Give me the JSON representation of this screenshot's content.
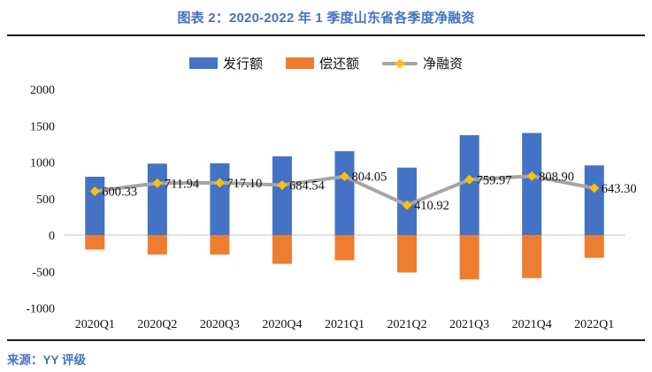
{
  "header": {
    "title": "图表 2：2020-2022 年 1 季度山东省各季度净融资"
  },
  "footer": {
    "source": "来源：YY 评级"
  },
  "theme": {
    "title_color": "#4472C4",
    "issuance_color": "#4472C4",
    "repayment_color": "#ED7D31",
    "net_line_color": "#A5A5A5",
    "net_marker_color": "#FFC000",
    "zero_line_color": "#D9D9D9"
  },
  "chart_data": {
    "type": "bar",
    "categories": [
      "2020Q1",
      "2020Q2",
      "2020Q3",
      "2020Q4",
      "2021Q1",
      "2021Q2",
      "2021Q3",
      "2021Q4",
      "2022Q1"
    ],
    "series": [
      {
        "name": "发行额",
        "type": "bar",
        "color": "#4472C4",
        "values": [
          800,
          980,
          985,
          1080,
          1150,
          925,
          1370,
          1400,
          955
        ]
      },
      {
        "name": "偿还额",
        "type": "bar",
        "color": "#ED7D31",
        "values": [
          -200,
          -268,
          -268,
          -395,
          -346,
          -514,
          -610,
          -591,
          -312
        ]
      },
      {
        "name": "净融资",
        "type": "line",
        "color": "#A5A5A5",
        "marker": "diamond",
        "marker_color": "#FFC000",
        "values": [
          600.33,
          711.94,
          717.1,
          684.54,
          804.05,
          410.92,
          759.97,
          808.9,
          643.3
        ],
        "labels": [
          "600.33",
          "711.94",
          "717.10",
          "684.54",
          "804.05",
          "410.92",
          "759.97",
          "808.90",
          "643.30"
        ]
      }
    ],
    "title": "图表 2：2020-2022 年 1 季度山东省各季度净融资",
    "xlabel": "",
    "ylabel": "",
    "ylim": [
      -1000,
      2000
    ],
    "ytick_step": 500,
    "yticks": [
      "-1000",
      "-500",
      "0",
      "500",
      "1000",
      "1500",
      "2000"
    ],
    "grid": false,
    "legend_position": "top"
  }
}
